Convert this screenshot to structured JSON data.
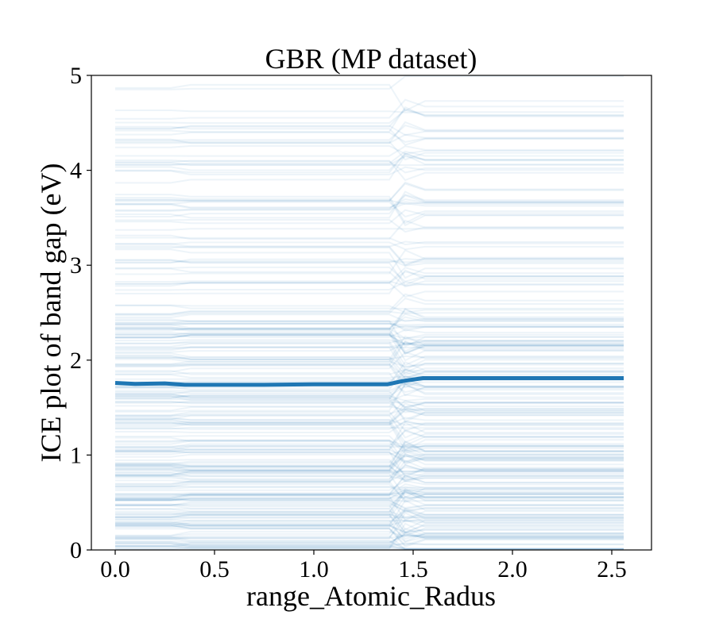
{
  "chart_data": {
    "type": "line",
    "title": "GBR (MP dataset)",
    "xlabel": "range_Atomic_Radus",
    "ylabel": "ICE plot of band gap (eV)",
    "xlim": [
      -0.12,
      2.7
    ],
    "ylim": [
      0,
      5
    ],
    "xticks": [
      "0.0",
      "0.5",
      "1.0",
      "1.5",
      "2.0",
      "2.5"
    ],
    "yticks": [
      "0",
      "1",
      "2",
      "3",
      "4",
      "5"
    ],
    "grid": false,
    "line_color": "#1f77b4",
    "series": [
      {
        "role": "average",
        "x": [
          0.0,
          0.1,
          0.25,
          0.35,
          0.5,
          0.75,
          1.0,
          1.25,
          1.37,
          1.45,
          1.55,
          1.6,
          2.0,
          2.56
        ],
        "y": [
          1.76,
          1.75,
          1.755,
          1.74,
          1.74,
          1.74,
          1.745,
          1.745,
          1.745,
          1.78,
          1.81,
          1.81,
          1.81,
          1.81
        ]
      }
    ],
    "ice_lines": {
      "count": 260,
      "opacity": 0.08,
      "y_range": [
        0,
        5
      ],
      "x_range": [
        0,
        2.56
      ]
    }
  }
}
